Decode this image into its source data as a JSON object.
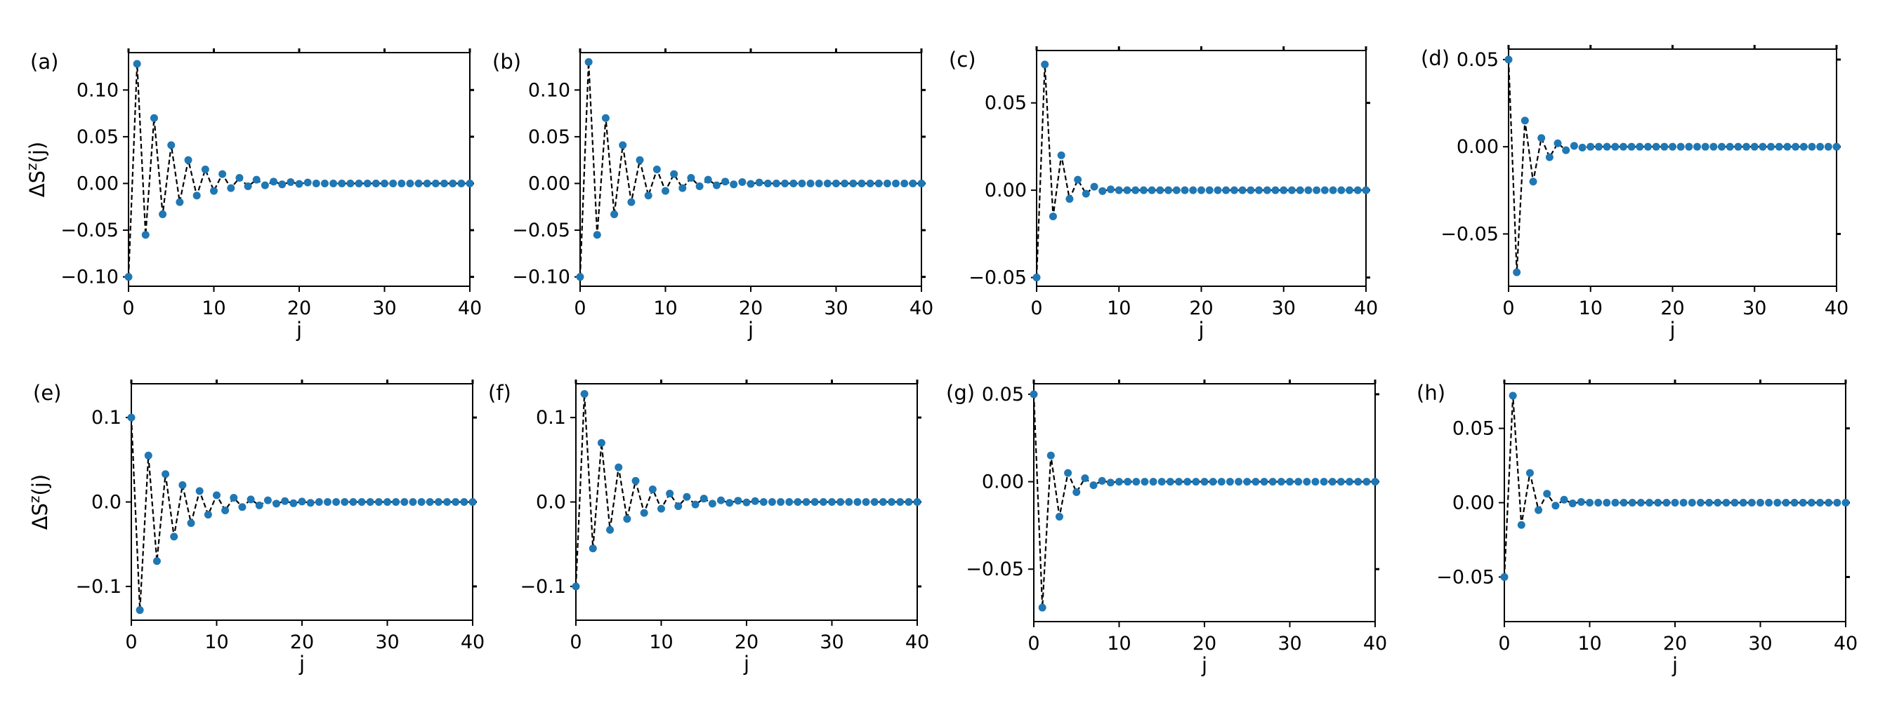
{
  "chart_data": [
    {
      "type": "line",
      "panel_label": "(a)",
      "xlabel": "j",
      "ylabel": "ΔS^z(j)",
      "xlim": [
        0,
        40
      ],
      "ylim": [
        -0.11,
        0.14
      ],
      "xticks": [
        0,
        10,
        20,
        30,
        40
      ],
      "yticks": [
        -0.1,
        -0.05,
        0.0,
        0.05,
        0.1
      ],
      "ytick_labels": [
        "−0.10",
        "−0.05",
        "0.00",
        "0.05",
        "0.10"
      ],
      "series": [
        {
          "style": "blue markers joined by black dashed line",
          "x": [
            0,
            1,
            2,
            3,
            4,
            5,
            6,
            7,
            8,
            9,
            10,
            11,
            12,
            13,
            14,
            15,
            16,
            17,
            18,
            19,
            20,
            21,
            22,
            23,
            24,
            25,
            26,
            27,
            28,
            29,
            30,
            31,
            32,
            33,
            34,
            35,
            36,
            37,
            38,
            39,
            40
          ],
          "y": [
            -0.1,
            0.128,
            -0.055,
            0.07,
            -0.033,
            0.041,
            -0.02,
            0.025,
            -0.013,
            0.015,
            -0.008,
            0.01,
            -0.005,
            0.006,
            -0.003,
            0.004,
            -0.002,
            0.002,
            -0.001,
            0.0015,
            -0.0005,
            0.001,
            0,
            0,
            0,
            0,
            0,
            0,
            0,
            0,
            0,
            0,
            0,
            0,
            0,
            0,
            0,
            0,
            0,
            0,
            0
          ]
        }
      ]
    },
    {
      "type": "line",
      "panel_label": "(b)",
      "xlabel": "j",
      "ylabel": "",
      "xlim": [
        0,
        40
      ],
      "ylim": [
        -0.11,
        0.14
      ],
      "xticks": [
        0,
        10,
        20,
        30,
        40
      ],
      "yticks": [
        -0.1,
        -0.05,
        0.0,
        0.05,
        0.1
      ],
      "ytick_labels": [
        "−0.10",
        "−0.05",
        "0.00",
        "0.05",
        "0.10"
      ],
      "series": [
        {
          "style": "blue markers joined by black dashed line",
          "x": [
            0,
            1,
            2,
            3,
            4,
            5,
            6,
            7,
            8,
            9,
            10,
            11,
            12,
            13,
            14,
            15,
            16,
            17,
            18,
            19,
            20,
            21,
            22,
            23,
            24,
            25,
            26,
            27,
            28,
            29,
            30,
            31,
            32,
            33,
            34,
            35,
            36,
            37,
            38,
            39,
            40
          ],
          "y": [
            -0.1,
            0.13,
            -0.055,
            0.07,
            -0.033,
            0.041,
            -0.02,
            0.025,
            -0.013,
            0.015,
            -0.008,
            0.01,
            -0.005,
            0.006,
            -0.003,
            0.004,
            -0.002,
            0.002,
            -0.001,
            0.0015,
            -0.0005,
            0.001,
            0,
            0,
            0,
            0,
            0,
            0,
            0,
            0,
            0,
            0,
            0,
            0,
            0,
            0,
            0,
            0,
            0,
            0,
            0
          ]
        }
      ]
    },
    {
      "type": "line",
      "panel_label": "(c)",
      "xlabel": "j",
      "ylabel": "",
      "xlim": [
        0,
        40
      ],
      "ylim": [
        -0.055,
        0.08
      ],
      "xticks": [
        0,
        10,
        20,
        30,
        40
      ],
      "yticks": [
        -0.05,
        0.0,
        0.05
      ],
      "ytick_labels": [
        "−0.05",
        "0.00",
        "0.05"
      ],
      "series": [
        {
          "style": "blue markers joined by black dashed line",
          "x": [
            0,
            1,
            2,
            3,
            4,
            5,
            6,
            7,
            8,
            9,
            10,
            11,
            12,
            13,
            14,
            15,
            16,
            17,
            18,
            19,
            20,
            21,
            22,
            23,
            24,
            25,
            26,
            27,
            28,
            29,
            30,
            31,
            32,
            33,
            34,
            35,
            36,
            37,
            38,
            39,
            40
          ],
          "y": [
            -0.05,
            0.072,
            -0.015,
            0.02,
            -0.005,
            0.006,
            -0.002,
            0.002,
            -0.0005,
            0.0005,
            0,
            0,
            0,
            0,
            0,
            0,
            0,
            0,
            0,
            0,
            0,
            0,
            0,
            0,
            0,
            0,
            0,
            0,
            0,
            0,
            0,
            0,
            0,
            0,
            0,
            0,
            0,
            0,
            0,
            0,
            0
          ]
        }
      ]
    },
    {
      "type": "line",
      "panel_label": "(d)",
      "xlabel": "j",
      "ylabel": "",
      "xlim": [
        0,
        40
      ],
      "ylim": [
        -0.08,
        0.056
      ],
      "xticks": [
        0,
        10,
        20,
        30,
        40
      ],
      "yticks": [
        -0.05,
        0.0,
        0.05
      ],
      "ytick_labels": [
        "−0.05",
        "0.00",
        "0.05"
      ],
      "series": [
        {
          "style": "blue markers joined by black dashed line",
          "x": [
            0,
            1,
            2,
            3,
            4,
            5,
            6,
            7,
            8,
            9,
            10,
            11,
            12,
            13,
            14,
            15,
            16,
            17,
            18,
            19,
            20,
            21,
            22,
            23,
            24,
            25,
            26,
            27,
            28,
            29,
            30,
            31,
            32,
            33,
            34,
            35,
            36,
            37,
            38,
            39,
            40
          ],
          "y": [
            0.05,
            -0.072,
            0.015,
            -0.02,
            0.005,
            -0.006,
            0.002,
            -0.002,
            0.0005,
            -0.0005,
            0,
            0,
            0,
            0,
            0,
            0,
            0,
            0,
            0,
            0,
            0,
            0,
            0,
            0,
            0,
            0,
            0,
            0,
            0,
            0,
            0,
            0,
            0,
            0,
            0,
            0,
            0,
            0,
            0,
            0,
            0
          ]
        }
      ]
    },
    {
      "type": "line",
      "panel_label": "(e)",
      "xlabel": "j",
      "ylabel": "ΔS^z(j)",
      "xlim": [
        0,
        40
      ],
      "ylim": [
        -0.14,
        0.14
      ],
      "xticks": [
        0,
        10,
        20,
        30,
        40
      ],
      "yticks": [
        -0.1,
        0.0,
        0.1
      ],
      "ytick_labels": [
        "−0.1",
        "0.0",
        "0.1"
      ],
      "series": [
        {
          "style": "blue markers joined by black dashed line",
          "x": [
            0,
            1,
            2,
            3,
            4,
            5,
            6,
            7,
            8,
            9,
            10,
            11,
            12,
            13,
            14,
            15,
            16,
            17,
            18,
            19,
            20,
            21,
            22,
            23,
            24,
            25,
            26,
            27,
            28,
            29,
            30,
            31,
            32,
            33,
            34,
            35,
            36,
            37,
            38,
            39,
            40
          ],
          "y": [
            0.1,
            -0.128,
            0.055,
            -0.07,
            0.033,
            -0.041,
            0.02,
            -0.025,
            0.013,
            -0.015,
            0.008,
            -0.01,
            0.005,
            -0.006,
            0.003,
            -0.004,
            0.002,
            -0.002,
            0.001,
            -0.0015,
            0.0005,
            -0.001,
            0,
            0,
            0,
            0,
            0,
            0,
            0,
            0,
            0,
            0,
            0,
            0,
            0,
            0,
            0,
            0,
            0,
            0,
            0
          ]
        }
      ]
    },
    {
      "type": "line",
      "panel_label": "(f)",
      "xlabel": "j",
      "ylabel": "",
      "xlim": [
        0,
        40
      ],
      "ylim": [
        -0.14,
        0.14
      ],
      "xticks": [
        0,
        10,
        20,
        30,
        40
      ],
      "yticks": [
        -0.1,
        0.0,
        0.1
      ],
      "ytick_labels": [
        "−0.1",
        "0.0",
        "0.1"
      ],
      "series": [
        {
          "style": "blue markers joined by black dashed line",
          "x": [
            0,
            1,
            2,
            3,
            4,
            5,
            6,
            7,
            8,
            9,
            10,
            11,
            12,
            13,
            14,
            15,
            16,
            17,
            18,
            19,
            20,
            21,
            22,
            23,
            24,
            25,
            26,
            27,
            28,
            29,
            30,
            31,
            32,
            33,
            34,
            35,
            36,
            37,
            38,
            39,
            40
          ],
          "y": [
            -0.1,
            0.128,
            -0.055,
            0.07,
            -0.033,
            0.041,
            -0.02,
            0.025,
            -0.013,
            0.015,
            -0.008,
            0.01,
            -0.005,
            0.006,
            -0.003,
            0.004,
            -0.002,
            0.002,
            -0.001,
            0.0015,
            -0.0005,
            0.001,
            0,
            0,
            0,
            0,
            0,
            0,
            0,
            0,
            0,
            0,
            0,
            0,
            0,
            0,
            0,
            0,
            0,
            0,
            0
          ]
        }
      ]
    },
    {
      "type": "line",
      "panel_label": "(g)",
      "xlabel": "j",
      "ylabel": "",
      "xlim": [
        0,
        40
      ],
      "ylim": [
        -0.08,
        0.056
      ],
      "xticks": [
        0,
        10,
        20,
        30,
        40
      ],
      "yticks": [
        -0.05,
        0.0,
        0.05
      ],
      "ytick_labels": [
        "−0.05",
        "0.00",
        "0.05"
      ],
      "series": [
        {
          "style": "blue markers joined by black dashed line",
          "x": [
            0,
            1,
            2,
            3,
            4,
            5,
            6,
            7,
            8,
            9,
            10,
            11,
            12,
            13,
            14,
            15,
            16,
            17,
            18,
            19,
            20,
            21,
            22,
            23,
            24,
            25,
            26,
            27,
            28,
            29,
            30,
            31,
            32,
            33,
            34,
            35,
            36,
            37,
            38,
            39,
            40
          ],
          "y": [
            0.05,
            -0.072,
            0.015,
            -0.02,
            0.005,
            -0.006,
            0.002,
            -0.002,
            0.0005,
            -0.0005,
            0,
            0,
            0,
            0,
            0,
            0,
            0,
            0,
            0,
            0,
            0,
            0,
            0,
            0,
            0,
            0,
            0,
            0,
            0,
            0,
            0,
            0,
            0,
            0,
            0,
            0,
            0,
            0,
            0,
            0,
            0
          ]
        }
      ]
    },
    {
      "type": "line",
      "panel_label": "(h)",
      "xlabel": "j",
      "ylabel": "",
      "xlim": [
        0,
        40
      ],
      "ylim": [
        -0.08,
        0.08
      ],
      "xticks": [
        0,
        10,
        20,
        30,
        40
      ],
      "yticks": [
        -0.05,
        0.0,
        0.05
      ],
      "ytick_labels": [
        "−0.05",
        "0.00",
        "0.05"
      ],
      "series": [
        {
          "style": "blue markers joined by black dashed line",
          "x": [
            0,
            1,
            2,
            3,
            4,
            5,
            6,
            7,
            8,
            9,
            10,
            11,
            12,
            13,
            14,
            15,
            16,
            17,
            18,
            19,
            20,
            21,
            22,
            23,
            24,
            25,
            26,
            27,
            28,
            29,
            30,
            31,
            32,
            33,
            34,
            35,
            36,
            37,
            38,
            39,
            40
          ],
          "y": [
            -0.05,
            0.072,
            -0.015,
            0.02,
            -0.005,
            0.006,
            -0.002,
            0.002,
            -0.0005,
            0.0005,
            0,
            0,
            0,
            0,
            0,
            0,
            0,
            0,
            0,
            0,
            0,
            0,
            0,
            0,
            0,
            0,
            0,
            0,
            0,
            0,
            0,
            0,
            0,
            0,
            0,
            0,
            0,
            0,
            0,
            0,
            0
          ]
        }
      ]
    }
  ],
  "colors": {
    "marker": "#1f77b4",
    "line": "#000000",
    "axes": "#000000",
    "background": "#ffffff"
  }
}
